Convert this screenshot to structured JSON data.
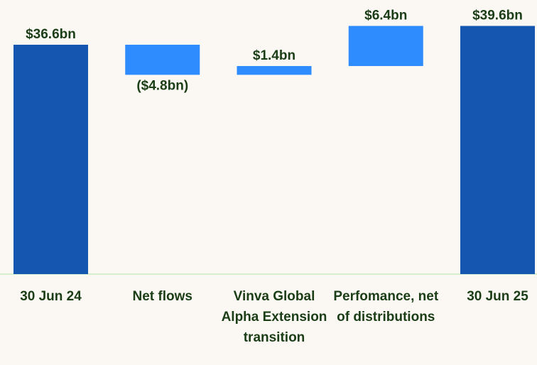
{
  "chart_data": {
    "type": "waterfall",
    "categories": [
      "30 Jun 24",
      "Net flows",
      "Vinva Global Alpha Extension transition",
      "Perfomance, net of distributions",
      "30 Jun 25"
    ],
    "values": [
      36.6,
      -4.8,
      1.4,
      6.4,
      39.6
    ],
    "value_labels": [
      "$36.6bn",
      "($4.8bn)",
      "$1.4bn",
      "$6.4bn",
      "$39.6bn"
    ],
    "measure": [
      "absolute",
      "relative",
      "relative",
      "relative",
      "absolute"
    ],
    "colors": {
      "absolute": "#1456b0",
      "relative": "#2f8cff"
    },
    "baseline_color": "#c7eac1",
    "ylim": [
      0,
      43
    ]
  }
}
